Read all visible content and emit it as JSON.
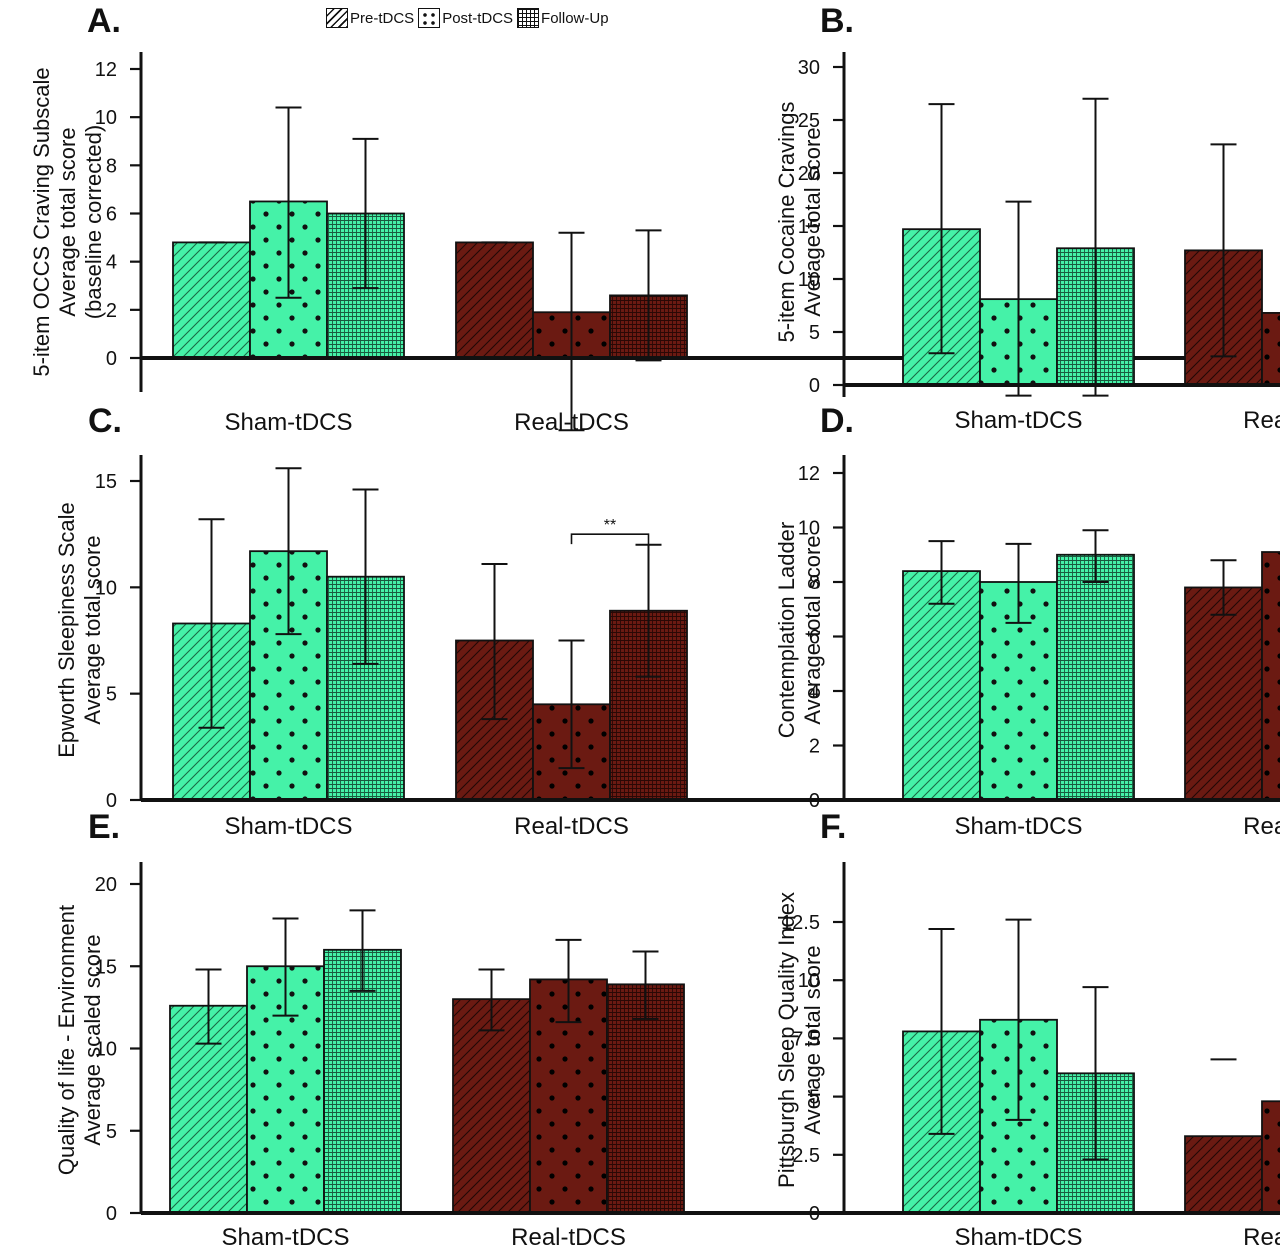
{
  "legend": [
    {
      "label": "Pre-tDCS",
      "pattern": "diagonal"
    },
    {
      "label": "Post-tDCS",
      "pattern": "dots"
    },
    {
      "label": "Follow-Up",
      "pattern": "grid"
    }
  ],
  "colors": {
    "sham": "#45f2a8",
    "real": "#6b1a12",
    "axis": "#111111"
  },
  "chart_data": [
    {
      "id": "A",
      "panel_label": "A.",
      "type": "bar",
      "ylabel_lines": [
        "5-item OCCS Craving Subscale",
        "Average total score",
        "(baseline corrected)"
      ],
      "ylim": [
        -3,
        12.5
      ],
      "yticks": [
        0,
        2,
        4,
        6,
        8,
        10,
        12
      ],
      "categories": [
        "Sham-tDCS",
        "Real-tDCS"
      ],
      "series": [
        {
          "name": "Pre-tDCS",
          "values": [
            4.8,
            4.8
          ],
          "err_low": [
            4.8,
            4.8
          ],
          "err_high": [
            4.8,
            4.8
          ]
        },
        {
          "name": "Post-tDCS",
          "values": [
            6.5,
            1.9
          ],
          "err_low": [
            2.5,
            -3.0
          ],
          "err_high": [
            10.4,
            5.2
          ]
        },
        {
          "name": "Follow-Up",
          "values": [
            6.0,
            2.6
          ],
          "err_low": [
            2.9,
            -0.1
          ],
          "err_high": [
            9.1,
            5.3
          ]
        }
      ],
      "annotations": []
    },
    {
      "id": "B",
      "panel_label": "B.",
      "type": "bar",
      "ylabel_lines": [
        "5-item Cocaine Cravings",
        "Average total score"
      ],
      "ylim": [
        -1,
        31
      ],
      "yticks": [
        0,
        5,
        10,
        15,
        20,
        25,
        30
      ],
      "categories": [
        "Sham-tDCS",
        "Real-tDCS"
      ],
      "series": [
        {
          "name": "Pre-tDCS",
          "values": [
            14.7,
            12.7
          ],
          "err_low": [
            3.0,
            2.7
          ],
          "err_high": [
            26.5,
            22.7
          ]
        },
        {
          "name": "Post-tDCS",
          "values": [
            8.1,
            6.8
          ],
          "err_low": [
            -1.0,
            null
          ],
          "err_high": [
            17.3,
            null
          ]
        },
        {
          "name": "Follow-Up",
          "values": [
            12.9,
            null
          ],
          "err_low": [
            -1.0,
            null
          ],
          "err_high": [
            27.0,
            null
          ]
        }
      ],
      "annotations": []
    },
    {
      "id": "C",
      "panel_label": "C.",
      "type": "bar",
      "ylabel_lines": [
        "Epworth Sleepiness Scale",
        "Average total score"
      ],
      "ylim": [
        0,
        16.5
      ],
      "yticks": [
        0,
        5,
        10,
        15
      ],
      "categories": [
        "Sham-tDCS",
        "Real-tDCS"
      ],
      "series": [
        {
          "name": "Pre-tDCS",
          "values": [
            8.3,
            7.5
          ],
          "err_low": [
            3.4,
            3.8
          ],
          "err_high": [
            13.2,
            11.1
          ]
        },
        {
          "name": "Post-tDCS",
          "values": [
            11.7,
            4.5
          ],
          "err_low": [
            7.8,
            1.5
          ],
          "err_high": [
            15.6,
            7.5
          ]
        },
        {
          "name": "Follow-Up",
          "values": [
            10.5,
            8.9
          ],
          "err_low": [
            6.4,
            5.8
          ],
          "err_high": [
            14.6,
            12.0
          ]
        }
      ],
      "annotations": [
        {
          "text": "**",
          "category": 1,
          "from_series": 1,
          "to_series": 2,
          "y": 12.5
        }
      ]
    },
    {
      "id": "D",
      "panel_label": "D.",
      "type": "bar",
      "ylabel_lines": [
        "Contemplation Ladder",
        "Average total score"
      ],
      "ylim": [
        0,
        12.5
      ],
      "yticks": [
        0,
        2,
        4,
        6,
        8,
        10,
        12
      ],
      "categories": [
        "Sham-tDCS",
        "Real-tDCS"
      ],
      "series": [
        {
          "name": "Pre-tDCS",
          "values": [
            8.4,
            7.8
          ],
          "err_low": [
            7.2,
            6.8
          ],
          "err_high": [
            9.5,
            8.8
          ]
        },
        {
          "name": "Post-tDCS",
          "values": [
            8.0,
            9.1
          ],
          "err_low": [
            6.5,
            null
          ],
          "err_high": [
            9.4,
            null
          ]
        },
        {
          "name": "Follow-Up",
          "values": [
            9.0,
            null
          ],
          "err_low": [
            8.0,
            null
          ],
          "err_high": [
            9.9,
            null
          ]
        }
      ],
      "annotations": []
    },
    {
      "id": "E",
      "panel_label": "E.",
      "type": "bar",
      "ylabel_lines": [
        "Quality of life - Environment",
        "Average scaled score"
      ],
      "ylim": [
        0,
        21
      ],
      "yticks": [
        0,
        5,
        10,
        15,
        20
      ],
      "categories": [
        "Sham-tDCS",
        "Real-tDCS"
      ],
      "series": [
        {
          "name": "Pre-tDCS",
          "values": [
            12.6,
            13.0
          ],
          "err_low": [
            10.3,
            11.1
          ],
          "err_high": [
            14.8,
            14.8
          ]
        },
        {
          "name": "Post-tDCS",
          "values": [
            15.0,
            14.2
          ],
          "err_low": [
            12.0,
            11.6
          ],
          "err_high": [
            17.9,
            16.6
          ]
        },
        {
          "name": "Follow-Up",
          "values": [
            16.0,
            13.9
          ],
          "err_low": [
            13.5,
            11.8
          ],
          "err_high": [
            18.4,
            15.9
          ]
        }
      ],
      "annotations": []
    },
    {
      "id": "F",
      "panel_label": "F.",
      "type": "bar",
      "ylabel_lines": [
        "Pittsburgh Sleep Quality Index",
        "Average total score"
      ],
      "ylim": [
        0,
        14.5
      ],
      "yticks": [
        0,
        2.5,
        5.0,
        7.5,
        10.0,
        12.5
      ],
      "categories": [
        "Sham-tDCS",
        "Real-tDCS"
      ],
      "series": [
        {
          "name": "Pre-tDCS",
          "values": [
            7.8,
            3.3
          ],
          "err_low": [
            3.4,
            null
          ],
          "err_high": [
            12.2,
            6.6
          ]
        },
        {
          "name": "Post-tDCS",
          "values": [
            8.3,
            4.8
          ],
          "err_low": [
            4.0,
            null
          ],
          "err_high": [
            12.6,
            null
          ]
        },
        {
          "name": "Follow-Up",
          "values": [
            6.0,
            null
          ],
          "err_low": [
            2.3,
            null
          ],
          "err_high": [
            9.7,
            null
          ]
        }
      ],
      "annotations": []
    }
  ]
}
